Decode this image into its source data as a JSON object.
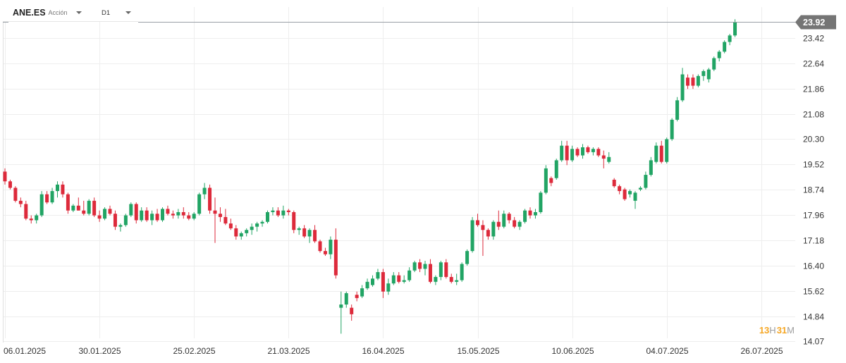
{
  "toolbar": {
    "symbol": "ANE.ES",
    "instrument_type": "Acción",
    "timeframe": "D1",
    "symbol_caret_icon": "caret-down-icon",
    "timeframe_caret_icon": "caret-down-icon"
  },
  "countdown": {
    "hours": "13",
    "hours_unit": "H",
    "minutes": "31",
    "minutes_unit": "M"
  },
  "colors": {
    "up": "#21a464",
    "down": "#dd2a3b",
    "grid": "#eeeeee",
    "price_line": "#9aa0a6",
    "price_tag": "#757575",
    "countdown": "#f5a623"
  },
  "chart_data": {
    "type": "candlestick",
    "symbol": "ANE.ES",
    "timeframe": "D1",
    "last_price": 23.92,
    "ylim": [
      14.07,
      24.2
    ],
    "y_ticks": [
      23.42,
      22.64,
      21.86,
      21.08,
      20.3,
      19.52,
      18.74,
      17.96,
      17.18,
      16.4,
      15.62,
      14.84,
      14.07
    ],
    "x_tick_labels": [
      "06.01.2025",
      "30.01.2025",
      "25.02.2025",
      "21.03.2025",
      "16.04.2025",
      "15.05.2025",
      "10.06.2025",
      "04.07.2025",
      "26.07.2025"
    ],
    "x_tick_index": [
      0,
      18,
      36,
      54,
      72,
      90,
      108,
      126,
      144
    ],
    "grid": true,
    "candles": [
      [
        19.3,
        19.4,
        18.9,
        19.0
      ],
      [
        19.0,
        19.05,
        18.75,
        18.8
      ],
      [
        18.8,
        18.85,
        18.35,
        18.4
      ],
      [
        18.4,
        18.5,
        18.2,
        18.3
      ],
      [
        18.3,
        18.4,
        17.8,
        17.85
      ],
      [
        17.85,
        17.95,
        17.7,
        17.8
      ],
      [
        17.8,
        18.0,
        17.7,
        17.95
      ],
      [
        17.95,
        18.7,
        17.9,
        18.6
      ],
      [
        18.6,
        18.7,
        18.3,
        18.35
      ],
      [
        18.35,
        18.8,
        18.3,
        18.7
      ],
      [
        18.7,
        19.0,
        18.5,
        18.9
      ],
      [
        18.9,
        19.0,
        18.5,
        18.6
      ],
      [
        18.6,
        18.65,
        18.0,
        18.1
      ],
      [
        18.1,
        18.3,
        18.05,
        18.25
      ],
      [
        18.25,
        18.5,
        18.1,
        18.1
      ],
      [
        18.1,
        18.4,
        17.95,
        18.0
      ],
      [
        18.0,
        18.45,
        17.95,
        18.4
      ],
      [
        18.4,
        18.5,
        17.9,
        17.95
      ],
      [
        17.95,
        18.1,
        17.75,
        17.85
      ],
      [
        17.85,
        18.2,
        17.8,
        18.15
      ],
      [
        18.15,
        18.25,
        17.95,
        18.0
      ],
      [
        18.0,
        18.1,
        17.5,
        17.6
      ],
      [
        17.6,
        17.7,
        17.45,
        17.65
      ],
      [
        17.65,
        18.0,
        17.6,
        17.95
      ],
      [
        17.95,
        18.35,
        17.9,
        18.3
      ],
      [
        18.3,
        18.35,
        17.7,
        17.8
      ],
      [
        17.8,
        18.2,
        17.75,
        18.1
      ],
      [
        18.1,
        18.2,
        17.75,
        17.8
      ],
      [
        17.8,
        18.1,
        17.65,
        18.0
      ],
      [
        18.0,
        18.15,
        17.75,
        17.8
      ],
      [
        17.8,
        18.2,
        17.75,
        18.15
      ],
      [
        18.15,
        18.25,
        17.95,
        18.0
      ],
      [
        18.0,
        18.1,
        17.85,
        17.95
      ],
      [
        17.95,
        18.15,
        17.85,
        18.05
      ],
      [
        18.05,
        18.2,
        17.85,
        17.95
      ],
      [
        17.95,
        18.05,
        17.8,
        17.85
      ],
      [
        17.85,
        18.05,
        17.8,
        18.0
      ],
      [
        18.0,
        18.65,
        17.95,
        18.6
      ],
      [
        18.6,
        18.95,
        18.45,
        18.8
      ],
      [
        18.8,
        18.9,
        18.0,
        18.1
      ],
      [
        18.1,
        18.5,
        17.1,
        18.0
      ],
      [
        18.0,
        18.2,
        17.75,
        17.9
      ],
      [
        17.9,
        18.15,
        17.65,
        17.7
      ],
      [
        17.7,
        17.85,
        17.5,
        17.55
      ],
      [
        17.55,
        17.65,
        17.2,
        17.3
      ],
      [
        17.3,
        17.45,
        17.2,
        17.4
      ],
      [
        17.4,
        17.55,
        17.3,
        17.5
      ],
      [
        17.5,
        17.7,
        17.35,
        17.6
      ],
      [
        17.6,
        17.75,
        17.45,
        17.7
      ],
      [
        17.7,
        17.8,
        17.6,
        17.75
      ],
      [
        17.75,
        18.1,
        17.7,
        18.05
      ],
      [
        18.05,
        18.2,
        17.95,
        18.1
      ],
      [
        18.1,
        18.2,
        17.9,
        17.95
      ],
      [
        17.95,
        18.25,
        17.85,
        18.1
      ],
      [
        18.1,
        18.15,
        17.95,
        18.05
      ],
      [
        18.05,
        18.1,
        17.4,
        17.5
      ],
      [
        17.5,
        17.6,
        17.35,
        17.55
      ],
      [
        17.55,
        17.65,
        17.25,
        17.3
      ],
      [
        17.3,
        17.55,
        17.1,
        17.5
      ],
      [
        17.5,
        17.65,
        17.1,
        17.15
      ],
      [
        17.15,
        17.2,
        16.8,
        16.85
      ],
      [
        16.85,
        16.95,
        16.7,
        16.75
      ],
      [
        16.75,
        17.3,
        16.6,
        17.2
      ],
      [
        17.2,
        17.55,
        16.0,
        16.1
      ],
      [
        15.1,
        15.6,
        14.3,
        15.2
      ],
      [
        15.2,
        15.6,
        15.1,
        15.55
      ],
      [
        15.1,
        15.2,
        14.7,
        14.9
      ],
      [
        15.5,
        15.6,
        15.3,
        15.4
      ],
      [
        15.45,
        15.8,
        15.4,
        15.7
      ],
      [
        15.7,
        16.0,
        15.65,
        15.9
      ],
      [
        15.8,
        16.1,
        15.75,
        16.0
      ],
      [
        16.0,
        16.3,
        15.95,
        16.2
      ],
      [
        16.2,
        16.3,
        15.4,
        15.6
      ],
      [
        15.6,
        16.0,
        15.5,
        15.85
      ],
      [
        15.85,
        16.2,
        15.8,
        16.1
      ],
      [
        16.1,
        16.2,
        15.85,
        15.9
      ],
      [
        15.9,
        16.1,
        15.85,
        15.95
      ],
      [
        15.95,
        16.35,
        15.9,
        16.25
      ],
      [
        16.25,
        16.55,
        16.2,
        16.5
      ],
      [
        16.5,
        16.6,
        16.2,
        16.3
      ],
      [
        16.3,
        16.55,
        16.1,
        16.45
      ],
      [
        16.45,
        16.6,
        15.85,
        15.9
      ],
      [
        15.9,
        16.1,
        15.8,
        16.05
      ],
      [
        16.05,
        16.55,
        15.95,
        16.5
      ],
      [
        16.5,
        16.6,
        16.0,
        16.05
      ],
      [
        16.05,
        16.15,
        15.85,
        15.9
      ],
      [
        15.9,
        16.15,
        15.8,
        15.95
      ],
      [
        15.95,
        16.5,
        15.9,
        16.45
      ],
      [
        16.45,
        16.9,
        16.4,
        16.85
      ],
      [
        16.85,
        17.9,
        16.8,
        17.8
      ],
      [
        17.8,
        18.0,
        17.6,
        17.65
      ],
      [
        17.65,
        17.8,
        16.7,
        17.5
      ],
      [
        17.5,
        17.55,
        17.2,
        17.3
      ],
      [
        17.3,
        17.8,
        17.2,
        17.75
      ],
      [
        17.75,
        18.1,
        17.5,
        17.6
      ],
      [
        17.6,
        18.1,
        17.55,
        18.0
      ],
      [
        18.0,
        18.05,
        17.7,
        17.8
      ],
      [
        17.8,
        17.9,
        17.55,
        17.6
      ],
      [
        17.6,
        17.8,
        17.5,
        17.75
      ],
      [
        17.75,
        18.15,
        17.7,
        18.1
      ],
      [
        18.1,
        18.2,
        17.85,
        17.95
      ],
      [
        17.95,
        18.15,
        17.85,
        18.05
      ],
      [
        18.05,
        18.7,
        18.0,
        18.65
      ],
      [
        18.65,
        19.5,
        18.6,
        19.4
      ],
      [
        19.1,
        19.15,
        18.85,
        18.95
      ],
      [
        19.1,
        19.7,
        19.05,
        19.65
      ],
      [
        19.65,
        20.25,
        19.6,
        20.1
      ],
      [
        20.1,
        20.25,
        19.5,
        19.65
      ],
      [
        19.65,
        20.1,
        19.6,
        20.0
      ],
      [
        20.0,
        20.05,
        19.75,
        19.8
      ],
      [
        19.8,
        20.15,
        19.7,
        20.05
      ],
      [
        20.05,
        20.1,
        19.85,
        19.9
      ],
      [
        19.9,
        20.05,
        19.8,
        20.0
      ],
      [
        20.0,
        20.05,
        19.75,
        19.8
      ],
      [
        19.8,
        19.95,
        19.4,
        19.7
      ],
      [
        19.6,
        19.9,
        19.55,
        19.75
      ],
      [
        19.05,
        19.1,
        18.8,
        18.85
      ],
      [
        18.85,
        18.9,
        18.6,
        18.7
      ],
      [
        18.75,
        18.8,
        18.4,
        18.45
      ],
      [
        18.6,
        18.75,
        18.5,
        18.7
      ],
      [
        18.4,
        18.7,
        18.15,
        18.65
      ],
      [
        18.75,
        18.85,
        18.7,
        18.8
      ],
      [
        18.8,
        19.3,
        18.75,
        19.2
      ],
      [
        19.2,
        19.75,
        19.15,
        19.65
      ],
      [
        19.6,
        20.2,
        19.55,
        20.1
      ],
      [
        20.1,
        20.25,
        19.55,
        19.6
      ],
      [
        19.6,
        20.35,
        19.55,
        20.3
      ],
      [
        20.3,
        20.95,
        20.25,
        20.9
      ],
      [
        20.9,
        21.6,
        20.85,
        21.5
      ],
      [
        21.5,
        22.5,
        21.45,
        22.3
      ],
      [
        22.2,
        22.3,
        21.85,
        21.95
      ],
      [
        22.2,
        22.3,
        21.85,
        21.95
      ],
      [
        21.95,
        22.3,
        21.9,
        22.25
      ],
      [
        22.25,
        22.45,
        22.1,
        22.4
      ],
      [
        22.15,
        22.5,
        22.05,
        22.45
      ],
      [
        22.45,
        22.85,
        22.4,
        22.8
      ],
      [
        22.8,
        23.05,
        22.7,
        23.0
      ],
      [
        23.0,
        23.35,
        22.95,
        23.3
      ],
      [
        23.3,
        23.55,
        23.2,
        23.5
      ],
      [
        23.5,
        24.0,
        23.45,
        23.92
      ]
    ]
  }
}
